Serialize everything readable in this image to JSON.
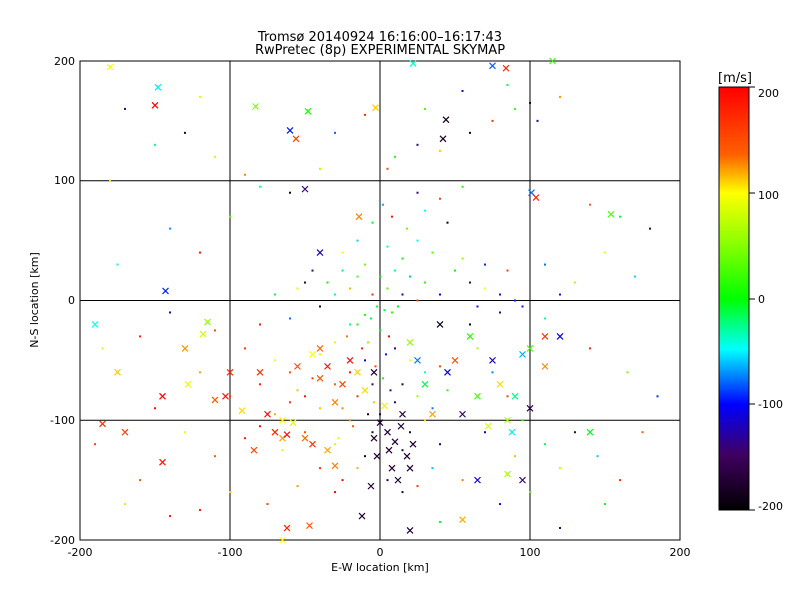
{
  "chart_data": {
    "type": "scatter",
    "title": "Tromsø 20140924 16:16:00–16:17:43",
    "subtitle": "RwPretec (8p) EXPERIMENTAL SKYMAP",
    "xlabel": "E-W location [km]",
    "ylabel": "N-S location [km]",
    "xlim": [
      -200,
      200
    ],
    "ylim": [
      -200,
      200
    ],
    "x_ticks": [
      "-200",
      "-100",
      "0",
      "100",
      "200"
    ],
    "y_ticks": [
      "-200",
      "-100",
      "0",
      "100",
      "200"
    ],
    "grid": true,
    "colorbar": {
      "label": "[m/s]",
      "range": [
        -200,
        200
      ],
      "ticks": [
        "200",
        "100",
        "0",
        "-100",
        "-200"
      ]
    },
    "series": [
      {
        "marker": "dot",
        "points": [
          [
            5,
            110
          ],
          [
            10,
            120
          ],
          [
            25,
            130
          ],
          [
            40,
            125
          ],
          [
            -80,
            95
          ],
          [
            -60,
            90
          ],
          [
            -40,
            110
          ],
          [
            -30,
            140
          ],
          [
            -10,
            155
          ],
          [
            30,
            160
          ],
          [
            55,
            175
          ],
          [
            -90,
            105
          ],
          [
            85,
            180
          ],
          [
            100,
            165
          ],
          [
            -120,
            170
          ],
          [
            2,
            80
          ],
          [
            8,
            70
          ],
          [
            18,
            60
          ],
          [
            25,
            50
          ],
          [
            35,
            40
          ],
          [
            -5,
            65
          ],
          [
            -15,
            50
          ],
          [
            -25,
            40
          ],
          [
            30,
            75
          ],
          [
            45,
            65
          ],
          [
            15,
            35
          ],
          [
            5,
            45
          ],
          [
            40,
            85
          ],
          [
            55,
            95
          ],
          [
            25,
            90
          ],
          [
            -20,
            10
          ],
          [
            -30,
            5
          ],
          [
            -40,
            -5
          ],
          [
            -10,
            -12
          ],
          [
            -60,
            -15
          ],
          [
            -80,
            -20
          ],
          [
            -110,
            -25
          ],
          [
            -140,
            -10
          ],
          [
            -160,
            -30
          ],
          [
            -70,
            5
          ],
          [
            -50,
            15
          ],
          [
            -90,
            -40
          ],
          [
            -120,
            -60
          ],
          [
            -150,
            -90
          ],
          [
            -100,
            -80
          ],
          [
            -10,
            -50
          ],
          [
            -20,
            -60
          ],
          [
            -30,
            -70
          ],
          [
            -5,
            -70
          ],
          [
            -15,
            -80
          ],
          [
            -25,
            -90
          ],
          [
            -35,
            -55
          ],
          [
            -45,
            -65
          ],
          [
            -55,
            -75
          ],
          [
            -8,
            -95
          ],
          [
            -18,
            -105
          ],
          [
            -28,
            -115
          ],
          [
            -12,
            -40
          ],
          [
            -22,
            -30
          ],
          [
            -40,
            -45
          ],
          [
            -60,
            -85
          ],
          [
            -70,
            -95
          ],
          [
            -80,
            -105
          ],
          [
            -50,
            -110
          ],
          [
            -65,
            -125
          ],
          [
            -90,
            -115
          ],
          [
            -110,
            -130
          ],
          [
            -130,
            -110
          ],
          [
            -40,
            -140
          ],
          [
            -55,
            -155
          ],
          [
            -30,
            -160
          ],
          [
            -75,
            -170
          ],
          [
            -100,
            -160
          ],
          [
            -120,
            -175
          ],
          [
            -160,
            -150
          ],
          [
            10,
            -40
          ],
          [
            20,
            -50
          ],
          [
            30,
            -60
          ],
          [
            15,
            -70
          ],
          [
            25,
            -80
          ],
          [
            35,
            -90
          ],
          [
            40,
            -55
          ],
          [
            45,
            -75
          ],
          [
            10,
            -85
          ],
          [
            30,
            -100
          ],
          [
            20,
            -110
          ],
          [
            40,
            -120
          ],
          [
            15,
            -125
          ],
          [
            35,
            -140
          ],
          [
            25,
            -155
          ],
          [
            -2,
            -5
          ],
          [
            3,
            -8
          ],
          [
            8,
            -10
          ],
          [
            12,
            -5
          ],
          [
            -6,
            -15
          ],
          [
            -15,
            -20
          ],
          [
            0,
            -25
          ],
          [
            6,
            -30
          ],
          [
            -8,
            -35
          ],
          [
            4,
            -45
          ],
          [
            -3,
            -55
          ],
          [
            2,
            -65
          ],
          [
            7,
            -75
          ],
          [
            -4,
            -85
          ],
          [
            0,
            -95
          ],
          [
            60,
            -20
          ],
          [
            65,
            -40
          ],
          [
            75,
            -60
          ],
          [
            85,
            -80
          ],
          [
            95,
            -100
          ],
          [
            70,
            -110
          ],
          [
            90,
            -130
          ],
          [
            110,
            -120
          ],
          [
            130,
            -110
          ],
          [
            120,
            -140
          ],
          [
            145,
            -130
          ],
          [
            160,
            -150
          ],
          [
            100,
            -160
          ],
          [
            80,
            -170
          ],
          [
            55,
            -150
          ],
          [
            50,
            25
          ],
          [
            60,
            15
          ],
          [
            70,
            10
          ],
          [
            80,
            5
          ],
          [
            90,
            0
          ],
          [
            55,
            35
          ],
          [
            70,
            30
          ],
          [
            85,
            25
          ],
          [
            65,
            -5
          ],
          [
            80,
            -10
          ],
          [
            95,
            -5
          ],
          [
            110,
            -15
          ],
          [
            120,
            5
          ],
          [
            130,
            15
          ],
          [
            110,
            30
          ],
          [
            -5,
            5
          ],
          [
            5,
            10
          ],
          [
            15,
            5
          ],
          [
            -15,
            20
          ],
          [
            -25,
            25
          ],
          [
            20,
            20
          ],
          [
            30,
            15
          ],
          [
            10,
            25
          ],
          [
            -10,
            30
          ],
          [
            0,
            20
          ],
          [
            40,
            5
          ],
          [
            25,
            0
          ],
          [
            -35,
            15
          ],
          [
            -45,
            25
          ],
          [
            -55,
            10
          ],
          [
            -20,
            -100
          ],
          [
            -30,
            -120
          ],
          [
            -10,
            -130
          ],
          [
            -40,
            -90
          ],
          [
            -50,
            -80
          ],
          [
            -60,
            -60
          ],
          [
            -70,
            -50
          ],
          [
            -80,
            -70
          ],
          [
            -20,
            -20
          ],
          [
            -30,
            -35
          ],
          [
            -5,
            -110
          ],
          [
            -15,
            -140
          ],
          [
            -25,
            -150
          ],
          [
            5,
            -150
          ],
          [
            15,
            -160
          ],
          [
            140,
            80
          ],
          [
            160,
            70
          ],
          [
            180,
            60
          ],
          [
            150,
            40
          ],
          [
            170,
            20
          ],
          [
            140,
            -40
          ],
          [
            165,
            -60
          ],
          [
            185,
            -80
          ],
          [
            175,
            -110
          ],
          [
            150,
            -170
          ],
          [
            -170,
            160
          ],
          [
            -180,
            100
          ],
          [
            -175,
            30
          ],
          [
            -185,
            -40
          ],
          [
            -190,
            -120
          ],
          [
            60,
            140
          ],
          [
            75,
            150
          ],
          [
            90,
            160
          ],
          [
            105,
            150
          ],
          [
            120,
            170
          ],
          [
            -150,
            130
          ],
          [
            -130,
            140
          ],
          [
            -110,
            120
          ],
          [
            -140,
            60
          ],
          [
            -120,
            40
          ],
          [
            -100,
            70
          ],
          [
            -170,
            -170
          ],
          [
            -140,
            -180
          ],
          [
            40,
            -185
          ],
          [
            120,
            -190
          ]
        ]
      },
      {
        "marker": "cross",
        "points": [
          [
            -180,
            195
          ],
          [
            -148,
            178
          ],
          [
            -150,
            163
          ],
          [
            -83,
            162
          ],
          [
            -60,
            142
          ],
          [
            -56,
            135
          ],
          [
            -48,
            158
          ],
          [
            -50,
            93
          ],
          [
            -3,
            161
          ],
          [
            22,
            198
          ],
          [
            44,
            151
          ],
          [
            42,
            135
          ],
          [
            75,
            196
          ],
          [
            84,
            194
          ],
          [
            115,
            200
          ],
          [
            -40,
            40
          ],
          [
            -14,
            70
          ],
          [
            -40,
            -40
          ],
          [
            -4,
            -60
          ],
          [
            -80,
            -60
          ],
          [
            -65,
            -115
          ],
          [
            -62,
            -112
          ],
          [
            -84,
            -125
          ],
          [
            -92,
            -92
          ],
          [
            -103,
            -80
          ],
          [
            -110,
            -83
          ],
          [
            -128,
            -70
          ],
          [
            -185,
            -103
          ],
          [
            -190,
            -20
          ],
          [
            -118,
            -28
          ],
          [
            -115,
            -18
          ],
          [
            -143,
            8
          ],
          [
            -145,
            -135
          ],
          [
            -47,
            -188
          ],
          [
            -65,
            -200
          ],
          [
            -62,
            -190
          ],
          [
            -30,
            -138
          ],
          [
            -12,
            -180
          ],
          [
            85,
            -145
          ],
          [
            101,
            90
          ],
          [
            104,
            86
          ],
          [
            154,
            72
          ],
          [
            65,
            -150
          ],
          [
            55,
            -183
          ],
          [
            20,
            -192
          ],
          [
            0,
            -102
          ],
          [
            5,
            -110
          ],
          [
            10,
            -118
          ],
          [
            15,
            -95
          ],
          [
            -2,
            -130
          ],
          [
            8,
            -140
          ],
          [
            12,
            -150
          ],
          [
            -6,
            -155
          ],
          [
            18,
            -130
          ],
          [
            3,
            -88
          ],
          [
            22,
            -120
          ],
          [
            6,
            -125
          ],
          [
            -4,
            -115
          ],
          [
            14,
            -105
          ],
          [
            20,
            -140
          ],
          [
            60,
            -30
          ],
          [
            75,
            -50
          ],
          [
            80,
            -70
          ],
          [
            90,
            -80
          ],
          [
            100,
            -90
          ],
          [
            85,
            -100
          ],
          [
            95,
            -45
          ],
          [
            110,
            -30
          ],
          [
            65,
            -80
          ],
          [
            45,
            -60
          ],
          [
            35,
            -95
          ],
          [
            30,
            -70
          ],
          [
            55,
            -95
          ],
          [
            72,
            -105
          ],
          [
            88,
            -110
          ],
          [
            -20,
            -50
          ],
          [
            -25,
            -70
          ],
          [
            -15,
            -60
          ],
          [
            -35,
            -55
          ],
          [
            -40,
            -65
          ],
          [
            -45,
            -45
          ],
          [
            -10,
            -75
          ],
          [
            -30,
            -85
          ],
          [
            40,
            -20
          ],
          [
            20,
            -35
          ],
          [
            25,
            -50
          ],
          [
            50,
            -50
          ],
          [
            -55,
            -55
          ],
          [
            -65,
            -100
          ],
          [
            -70,
            -110
          ],
          [
            -50,
            -115
          ],
          [
            -58,
            -102
          ],
          [
            -45,
            -120
          ],
          [
            -35,
            -125
          ],
          [
            -75,
            -95
          ],
          [
            100,
            -40
          ],
          [
            120,
            -30
          ],
          [
            110,
            -55
          ],
          [
            140,
            -110
          ],
          [
            95,
            -150
          ],
          [
            -100,
            -60
          ],
          [
            -130,
            -40
          ],
          [
            -145,
            -80
          ],
          [
            -170,
            -110
          ],
          [
            -175,
            -60
          ]
        ]
      }
    ]
  }
}
